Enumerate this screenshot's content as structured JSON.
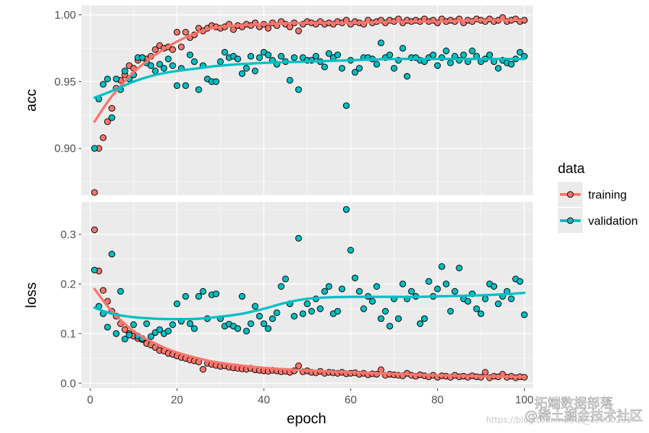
{
  "chart_data": {
    "type": "scatter",
    "xlabel": "epoch",
    "x_ticks": [
      0,
      20,
      40,
      60,
      80,
      100
    ],
    "xlim": [
      -2,
      102
    ],
    "legend": {
      "title": "data",
      "placement": "right",
      "entries": [
        {
          "name": "training",
          "color": "#F8766D"
        },
        {
          "name": "validation",
          "color": "#00BFC4"
        }
      ]
    },
    "panels": [
      {
        "name": "acc",
        "ylabel": "acc",
        "ylim": [
          0.865,
          1.007
        ],
        "y_ticks": [
          0.9,
          0.95,
          1.0
        ],
        "y_tick_labels": [
          "0.90",
          "0.95",
          "1.00"
        ],
        "series": [
          {
            "name": "training",
            "values": [
              0.867,
              0.9,
              0.908,
              0.92,
              0.93,
              0.945,
              0.951,
              0.955,
              0.962,
              0.96,
              0.966,
              0.968,
              0.967,
              0.969,
              0.974,
              0.977,
              0.975,
              0.976,
              0.974,
              0.987,
              0.976,
              0.987,
              0.983,
              0.985,
              0.99,
              0.988,
              0.99,
              0.992,
              0.991,
              0.99,
              0.991,
              0.993,
              0.989,
              0.992,
              0.991,
              0.993,
              0.992,
              0.994,
              0.991,
              0.993,
              0.99,
              0.994,
              0.992,
              0.995,
              0.993,
              0.991,
              0.994,
              0.988,
              0.993,
              0.995,
              0.994,
              0.993,
              0.995,
              0.993,
              0.994,
              0.993,
              0.995,
              0.994,
              0.996,
              0.993,
              0.995,
              0.994,
              0.993,
              0.996,
              0.994,
              0.995,
              0.996,
              0.994,
              0.996,
              0.995,
              0.997,
              0.994,
              0.996,
              0.995,
              0.996,
              0.995,
              0.997,
              0.995,
              0.996,
              0.994,
              0.997,
              0.995,
              0.996,
              0.995,
              0.997,
              0.994,
              0.996,
              0.995,
              0.997,
              0.996,
              0.995,
              0.997,
              0.995,
              0.996,
              0.998,
              0.995,
              0.996,
              0.997,
              0.995,
              0.996
            ]
          },
          {
            "name": "validation",
            "values": [
              0.9,
              0.937,
              0.948,
              0.952,
              0.923,
              0.952,
              0.944,
              0.958,
              0.952,
              0.955,
              0.968,
              0.968,
              0.964,
              0.962,
              0.958,
              0.963,
              0.96,
              0.967,
              0.962,
              0.947,
              0.96,
              0.947,
              0.97,
              0.965,
              0.944,
              0.962,
              0.952,
              0.95,
              0.95,
              0.965,
              0.972,
              0.968,
              0.969,
              0.967,
              0.956,
              0.96,
              0.969,
              0.958,
              0.968,
              0.972,
              0.97,
              0.966,
              0.963,
              0.969,
              0.965,
              0.951,
              0.968,
              0.944,
              0.968,
              0.966,
              0.966,
              0.969,
              0.965,
              0.961,
              0.971,
              0.968,
              0.97,
              0.96,
              0.932,
              0.966,
              0.957,
              0.96,
              0.968,
              0.968,
              0.967,
              0.963,
              0.979,
              0.968,
              0.97,
              0.96,
              0.966,
              0.975,
              0.954,
              0.968,
              0.968,
              0.966,
              0.965,
              0.968,
              0.97,
              0.962,
              0.968,
              0.973,
              0.964,
              0.969,
              0.966,
              0.97,
              0.965,
              0.973,
              0.969,
              0.965,
              0.967,
              0.97,
              0.965,
              0.96,
              0.966,
              0.964,
              0.963,
              0.967,
              0.972,
              0.969
            ]
          }
        ],
        "smooth": [
          {
            "name": "training",
            "x": [
              1,
              5,
              10,
              15,
              20,
              25,
              30,
              40,
              50,
              60,
              70,
              80,
              90,
              100
            ],
            "y": [
              0.92,
              0.939,
              0.957,
              0.97,
              0.98,
              0.987,
              0.991,
              0.993,
              0.994,
              0.994,
              0.995,
              0.995,
              0.996,
              0.996
            ]
          },
          {
            "name": "validation",
            "x": [
              1,
              5,
              10,
              15,
              20,
              25,
              30,
              40,
              50,
              60,
              70,
              80,
              90,
              100
            ],
            "y": [
              0.938,
              0.943,
              0.95,
              0.955,
              0.958,
              0.96,
              0.962,
              0.964,
              0.965,
              0.966,
              0.967,
              0.967,
              0.967,
              0.967
            ]
          }
        ]
      },
      {
        "name": "loss",
        "ylabel": "loss",
        "ylim": [
          -0.01,
          0.365
        ],
        "y_ticks": [
          0.0,
          0.1,
          0.2,
          0.3
        ],
        "y_tick_labels": [
          "0.0",
          "0.1",
          "0.2",
          "0.3"
        ],
        "series": [
          {
            "name": "training",
            "values": [
              0.309,
              0.226,
              0.187,
              0.165,
              0.145,
              0.135,
              0.12,
              0.108,
              0.1,
              0.095,
              0.09,
              0.088,
              0.08,
              0.077,
              0.072,
              0.066,
              0.065,
              0.06,
              0.058,
              0.055,
              0.052,
              0.05,
              0.047,
              0.045,
              0.043,
              0.028,
              0.04,
              0.038,
              0.036,
              0.034,
              0.035,
              0.032,
              0.031,
              0.03,
              0.029,
              0.028,
              0.03,
              0.027,
              0.026,
              0.025,
              0.024,
              0.026,
              0.025,
              0.023,
              0.024,
              0.022,
              0.025,
              0.035,
              0.023,
              0.025,
              0.022,
              0.021,
              0.024,
              0.02,
              0.022,
              0.021,
              0.02,
              0.022,
              0.019,
              0.02,
              0.021,
              0.018,
              0.02,
              0.017,
              0.019,
              0.018,
              0.027,
              0.016,
              0.018,
              0.017,
              0.016,
              0.015,
              0.02,
              0.016,
              0.014,
              0.017,
              0.015,
              0.013,
              0.016,
              0.012,
              0.015,
              0.014,
              0.012,
              0.016,
              0.013,
              0.014,
              0.012,
              0.015,
              0.013,
              0.012,
              0.022,
              0.011,
              0.014,
              0.013,
              0.018,
              0.012,
              0.014,
              0.011,
              0.013,
              0.012
            ]
          },
          {
            "name": "validation",
            "values": [
              0.228,
              0.155,
              0.14,
              0.113,
              0.26,
              0.1,
              0.185,
              0.089,
              0.097,
              0.118,
              0.095,
              0.09,
              0.12,
              0.094,
              0.102,
              0.108,
              0.1,
              0.105,
              0.118,
              0.16,
              0.125,
              0.175,
              0.12,
              0.11,
              0.175,
              0.185,
              0.13,
              0.178,
              0.18,
              0.13,
              0.115,
              0.119,
              0.115,
              0.11,
              0.175,
              0.105,
              0.12,
              0.155,
              0.135,
              0.12,
              0.11,
              0.13,
              0.142,
              0.195,
              0.21,
              0.16,
              0.135,
              0.292,
              0.14,
              0.16,
              0.145,
              0.17,
              0.15,
              0.185,
              0.195,
              0.14,
              0.145,
              0.19,
              0.35,
              0.268,
              0.212,
              0.185,
              0.15,
              0.175,
              0.165,
              0.195,
              0.13,
              0.145,
              0.115,
              0.17,
              0.13,
              0.2,
              0.17,
              0.185,
              0.175,
              0.12,
              0.13,
              0.205,
              0.175,
              0.19,
              0.235,
              0.2,
              0.145,
              0.185,
              0.232,
              0.17,
              0.165,
              0.18,
              0.15,
              0.14,
              0.17,
              0.2,
              0.195,
              0.16,
              0.175,
              0.185,
              0.17,
              0.21,
              0.205,
              0.138
            ]
          }
        ],
        "smooth": [
          {
            "name": "training",
            "x": [
              1,
              5,
              10,
              15,
              20,
              25,
              30,
              40,
              50,
              60,
              70,
              80,
              90,
              100
            ],
            "y": [
              0.19,
              0.145,
              0.105,
              0.08,
              0.062,
              0.05,
              0.041,
              0.031,
              0.026,
              0.022,
              0.019,
              0.016,
              0.014,
              0.013
            ]
          },
          {
            "name": "validation",
            "x": [
              1,
              5,
              10,
              15,
              20,
              25,
              30,
              35,
              40,
              45,
              50,
              55,
              60,
              65,
              70,
              75,
              80,
              85,
              90,
              95,
              100
            ],
            "y": [
              0.152,
              0.14,
              0.133,
              0.13,
              0.129,
              0.13,
              0.134,
              0.14,
              0.15,
              0.162,
              0.17,
              0.173,
              0.174,
              0.174,
              0.174,
              0.174,
              0.175,
              0.176,
              0.177,
              0.179,
              0.182
            ]
          }
        ]
      }
    ]
  },
  "watermark": {
    "brand": "拓端数据部落",
    "url": "https://blog.csdn.net/qq_19600291",
    "overlay": "@稀土掘金技术社区"
  }
}
